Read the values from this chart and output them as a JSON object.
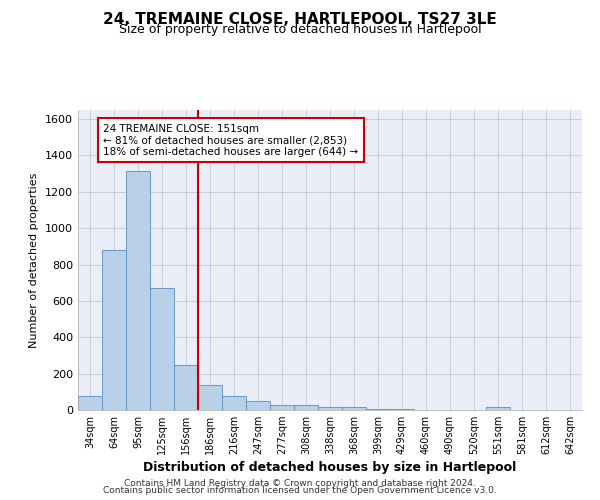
{
  "title": "24, TREMAINE CLOSE, HARTLEPOOL, TS27 3LE",
  "subtitle": "Size of property relative to detached houses in Hartlepool",
  "xlabel": "Distribution of detached houses by size in Hartlepool",
  "ylabel": "Number of detached properties",
  "categories": [
    "34sqm",
    "64sqm",
    "95sqm",
    "125sqm",
    "156sqm",
    "186sqm",
    "216sqm",
    "247sqm",
    "277sqm",
    "308sqm",
    "338sqm",
    "368sqm",
    "399sqm",
    "429sqm",
    "460sqm",
    "490sqm",
    "520sqm",
    "551sqm",
    "581sqm",
    "612sqm",
    "642sqm"
  ],
  "values": [
    75,
    880,
    1315,
    670,
    245,
    140,
    78,
    50,
    27,
    27,
    15,
    15,
    3,
    3,
    0,
    0,
    0,
    15,
    0,
    0,
    0
  ],
  "bar_color": "#b8d0e8",
  "bar_edgecolor": "#5a8fc0",
  "grid_color": "#c8ccdc",
  "bg_color": "#eaeef8",
  "vline_x": 4.5,
  "vline_color": "#cc0000",
  "annotation_text": "24 TREMAINE CLOSE: 151sqm\n← 81% of detached houses are smaller (2,853)\n18% of semi-detached houses are larger (644) →",
  "annotation_box_color": "#cc0000",
  "ylim": [
    0,
    1650
  ],
  "yticks": [
    0,
    200,
    400,
    600,
    800,
    1000,
    1200,
    1400,
    1600
  ],
  "footnote_line1": "Contains HM Land Registry data © Crown copyright and database right 2024.",
  "footnote_line2": "Contains public sector information licensed under the Open Government Licence v3.0."
}
